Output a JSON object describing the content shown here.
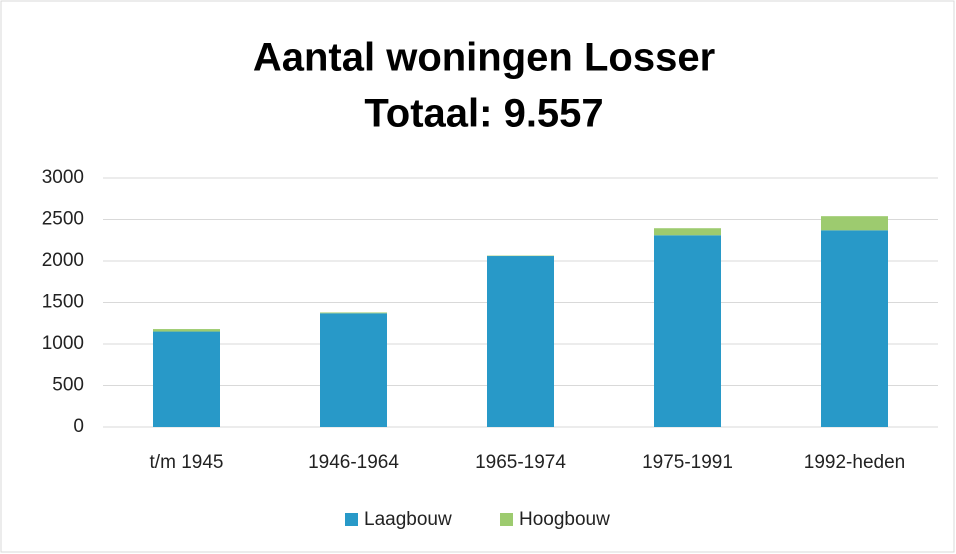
{
  "chart_data": {
    "type": "stacked_bar",
    "title": "Aantal woningen Losser",
    "subtitle": "Totaal: 9.557",
    "categories": [
      "t/m 1945",
      "1946-1964",
      "1965-1974",
      "1975-1991",
      "1992-heden"
    ],
    "series": [
      {
        "name": "Laagbouw",
        "color": "#2899c8",
        "values": [
          1150,
          1370,
          2060,
          2310,
          2370
        ]
      },
      {
        "name": "Hoogbouw",
        "color": "#9dcb6f",
        "values": [
          30,
          10,
          5,
          85,
          170
        ]
      }
    ],
    "ylim": [
      0,
      3000
    ],
    "yticks": [
      0,
      500,
      1000,
      1500,
      2000,
      2500,
      3000
    ],
    "grid": true,
    "legend": "bottom"
  }
}
